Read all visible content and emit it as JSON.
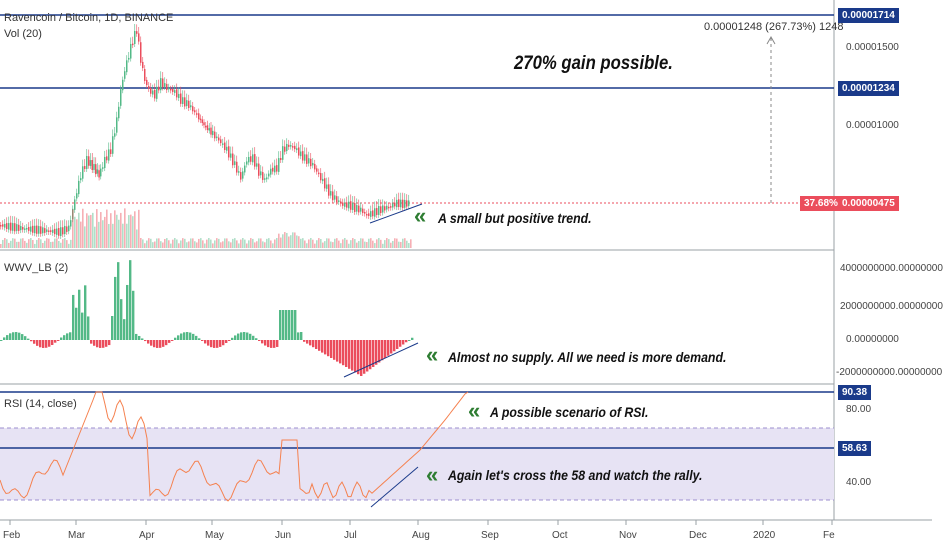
{
  "header": {
    "symbol_title": "Ravencoin / Bitcoin, 1D, BINANCE",
    "volume_label": "Vol (20)",
    "wwv_label": "WWV_LB (2)",
    "rsi_label": "RSI (14, close)"
  },
  "measure": {
    "text": "0.00001248 (267.73%) 1248"
  },
  "price_axis": {
    "ticks": [
      "0.00001500",
      "0.00001000"
    ],
    "tag_top": "0.00001714",
    "tag_mid": "0.00001234",
    "tag_last_pct": "37.68%",
    "tag_last": "0.00000475"
  },
  "wwv_axis": {
    "ticks": [
      "4000000000.00000000",
      "2000000000.00000000",
      "0.00000000",
      "-2000000000.00000000"
    ]
  },
  "rsi_axis": {
    "ticks": [
      "80.00",
      "40.00"
    ],
    "tag_top": "90.38",
    "tag_mid": "58.63"
  },
  "time_axis": {
    "labels": [
      "Feb",
      "Mar",
      "Apr",
      "May",
      "Jun",
      "Jul",
      "Aug",
      "Sep",
      "Oct",
      "Nov",
      "Dec",
      "2020",
      "Fe"
    ]
  },
  "annotations": {
    "headline": "270% gain possible.",
    "trend": "A small but positive trend.",
    "supply": "Almost no supply. All we need is more demand.",
    "rsi_scenario": "A possible scenario of RSI.",
    "rsi_cross": "Again let's cross the 58 and watch the rally.",
    "chevron": "«"
  },
  "colors": {
    "up": "#53b987",
    "down": "#eb4d5c",
    "hline": "#1a3a8a",
    "rsi_line": "#f5814f",
    "rsi_band": "#e7e3f4",
    "last_price": "#eb4d5c",
    "annot_chevron": "#2e7d32"
  }
}
